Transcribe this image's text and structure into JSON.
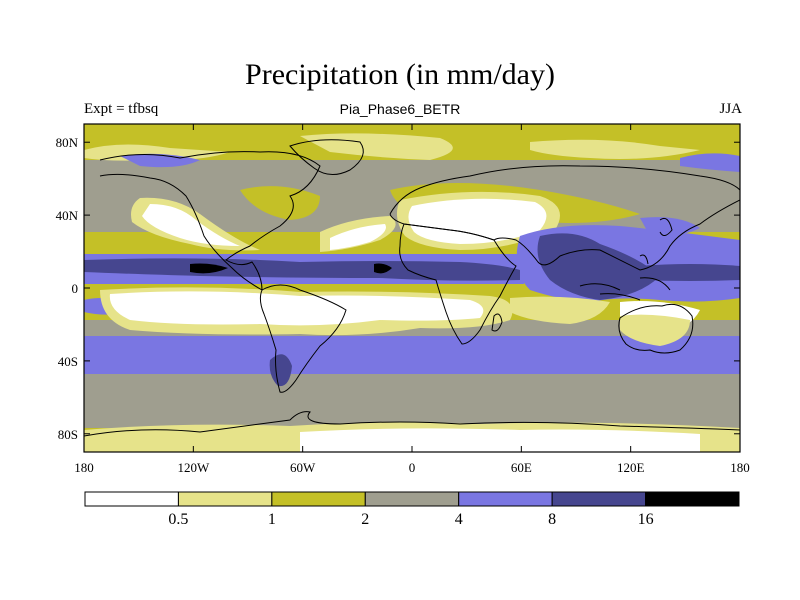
{
  "title": "Precipitation (in mm/day)",
  "subtitle": "Pia_Phase6_BETR",
  "left_label": "Expt = tfbsq",
  "right_label": "JJA",
  "map": {
    "lon_range": [
      -180,
      180
    ],
    "lat_range": [
      -90,
      90
    ],
    "lat_ticks": [
      "80N",
      "40N",
      "0",
      "40S",
      "80S"
    ],
    "lat_tick_values": [
      80,
      40,
      0,
      -40,
      -80
    ],
    "lon_ticks": [
      "180",
      "120W",
      "60W",
      "0",
      "60E",
      "120E",
      "180"
    ],
    "lon_tick_values": [
      -180,
      -120,
      -60,
      0,
      60,
      120,
      180
    ]
  },
  "colorbar": {
    "colors": [
      "#ffffff",
      "#e6e38a",
      "#c4c027",
      "#9f9e8f",
      "#7a76e2",
      "#46468f",
      "#000000"
    ],
    "labels": [
      "0.5",
      "1",
      "2",
      "4",
      "8",
      "16"
    ]
  },
  "colors": {
    "lt1": "#e6e38a",
    "olive": "#c4c027",
    "gray": "#9f9e8f",
    "blue": "#7a76e2",
    "dblue": "#46468f",
    "black": "#000000",
    "white": "#ffffff"
  }
}
